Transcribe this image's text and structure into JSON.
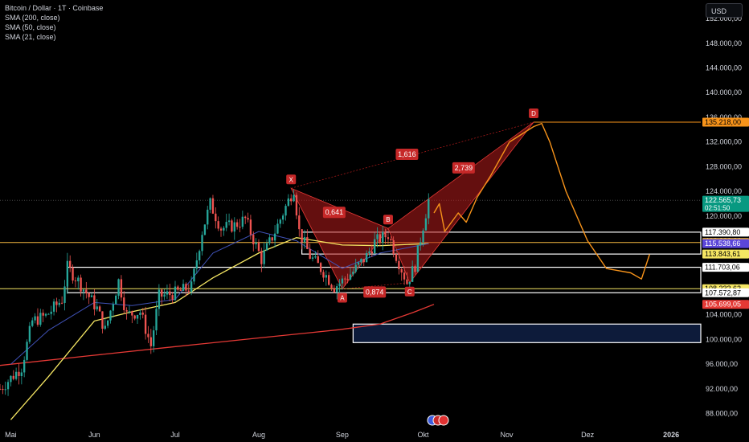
{
  "legend": {
    "title": "Bitcoin / Dollar · 1T · Coinbase",
    "items": [
      "SMA (200, close)",
      "SMA (50, close)",
      "SMA (21, close)"
    ]
  },
  "currency_button": "USD",
  "colors": {
    "up": "#26a69a",
    "down": "#ef5350",
    "sma200": "#e53935",
    "sma50": "#f5e663",
    "sma21": "#3f51b5",
    "pattern": "#b71c1c",
    "projection": "#f7931a",
    "box": "#0d1b3a",
    "hline": "#f5b841"
  },
  "chart_data": {
    "type": "candlestick",
    "title": "Bitcoin / Dollar · 1T · Coinbase",
    "y_axis": {
      "ylim": [
        86000,
        155000
      ],
      "ticks": [
        88000,
        92000,
        96000,
        100000,
        104000,
        108000,
        112000,
        116000,
        120000,
        124000,
        128000,
        132000,
        136000,
        140000,
        144000,
        148000,
        152000
      ],
      "tick_labels": [
        "88.000,00",
        "92.000,00",
        "96.000,00",
        "100.000,00",
        "104.000,00",
        "108.000,00",
        "112.000,00",
        "116.000,00",
        "120.000,00",
        "124.000,00",
        "128.000,00",
        "132.000,00",
        "136.000,00",
        "140.000,00",
        "144.000,00",
        "148.000,00",
        "152.000,00"
      ],
      "position": "right"
    },
    "x_axis": {
      "range": [
        "2025-04-27",
        "2026-01-12"
      ],
      "ticks": [
        {
          "date": "2025-05-01",
          "label": "Mai",
          "bold": false
        },
        {
          "date": "2025-06-01",
          "label": "Jun",
          "bold": false
        },
        {
          "date": "2025-07-01",
          "label": "Jul",
          "bold": false
        },
        {
          "date": "2025-08-01",
          "label": "Aug",
          "bold": false
        },
        {
          "date": "2025-09-01",
          "label": "Sep",
          "bold": false
        },
        {
          "date": "2025-10-01",
          "label": "Okt",
          "bold": false
        },
        {
          "date": "2025-11-01",
          "label": "Nov",
          "bold": false
        },
        {
          "date": "2025-12-01",
          "label": "Dez",
          "bold": false
        },
        {
          "date": "2026-01-01",
          "label": "2026",
          "bold": true
        }
      ]
    },
    "price_points": [
      [
        "2025-04-27",
        92000
      ],
      [
        "2025-05-05",
        95500
      ],
      [
        "2025-05-09",
        103000
      ],
      [
        "2025-05-14",
        103800
      ],
      [
        "2025-05-20",
        106500
      ],
      [
        "2025-05-22",
        111700
      ],
      [
        "2025-05-26",
        109500
      ],
      [
        "2025-06-02",
        105000
      ],
      [
        "2025-06-05",
        101500
      ],
      [
        "2025-06-10",
        109500
      ],
      [
        "2025-06-13",
        104000
      ],
      [
        "2025-06-18",
        104500
      ],
      [
        "2025-06-22",
        99000
      ],
      [
        "2025-06-25",
        107000
      ],
      [
        "2025-07-01",
        107500
      ],
      [
        "2025-07-07",
        108500
      ],
      [
        "2025-07-11",
        117500
      ],
      [
        "2025-07-14",
        122000
      ],
      [
        "2025-07-18",
        118000
      ],
      [
        "2025-07-23",
        118500
      ],
      [
        "2025-07-27",
        119500
      ],
      [
        "2025-08-02",
        113000
      ],
      [
        "2025-08-07",
        117500
      ],
      [
        "2025-08-11",
        121500
      ],
      [
        "2025-08-14",
        124500
      ],
      [
        "2025-08-16",
        117500
      ],
      [
        "2025-08-20",
        113500
      ],
      [
        "2025-08-25",
        111000
      ],
      [
        "2025-08-29",
        108500
      ],
      [
        "2025-09-01",
        109500
      ],
      [
        "2025-09-05",
        111000
      ],
      [
        "2025-09-10",
        113500
      ],
      [
        "2025-09-13",
        115800
      ],
      [
        "2025-09-18",
        117000
      ],
      [
        "2025-09-22",
        112500
      ],
      [
        "2025-09-25",
        109200
      ],
      [
        "2025-09-28",
        112000
      ],
      [
        "2025-10-01",
        118500
      ],
      [
        "2025-10-03",
        122565.73
      ]
    ],
    "sma200": [
      [
        "2025-04-27",
        95800
      ],
      [
        "2025-05-31",
        97400
      ],
      [
        "2025-06-30",
        98800
      ],
      [
        "2025-07-31",
        100200
      ],
      [
        "2025-08-31",
        101600
      ],
      [
        "2025-09-15",
        102500
      ],
      [
        "2025-09-28",
        104500
      ],
      [
        "2025-10-05",
        105699.05
      ]
    ],
    "sma50": [
      [
        "2025-05-01",
        87000
      ],
      [
        "2025-05-15",
        94000
      ],
      [
        "2025-06-01",
        103000
      ],
      [
        "2025-06-15",
        104500
      ],
      [
        "2025-07-01",
        106000
      ],
      [
        "2025-07-15",
        110000
      ],
      [
        "2025-08-01",
        114000
      ],
      [
        "2025-08-15",
        116500
      ],
      [
        "2025-09-01",
        115300
      ],
      [
        "2025-09-15",
        115200
      ],
      [
        "2025-10-03",
        115538.66
      ]
    ],
    "sma21": [
      [
        "2025-05-01",
        96000
      ],
      [
        "2025-05-15",
        101500
      ],
      [
        "2025-06-01",
        106000
      ],
      [
        "2025-06-15",
        105500
      ],
      [
        "2025-07-01",
        106500
      ],
      [
        "2025-07-15",
        114000
      ],
      [
        "2025-08-01",
        117500
      ],
      [
        "2025-08-15",
        116000
      ],
      [
        "2025-09-01",
        111500
      ],
      [
        "2025-09-15",
        114000
      ],
      [
        "2025-10-03",
        115538.66
      ]
    ],
    "harmonic_pattern": {
      "points": [
        {
          "label": "X",
          "date": "2025-08-13",
          "price": 124500
        },
        {
          "label": "A",
          "date": "2025-09-01",
          "price": 108200
        },
        {
          "label": "B",
          "date": "2025-09-18",
          "price": 118000
        },
        {
          "label": "C",
          "date": "2025-09-26",
          "price": 109200
        },
        {
          "label": "D",
          "date": "2025-11-11",
          "price": 135218
        }
      ],
      "ratios": [
        {
          "text": "0,641",
          "date": "2025-08-29",
          "price": 120600
        },
        {
          "text": "0,874",
          "date": "2025-09-13",
          "price": 107700
        },
        {
          "text": "1,616",
          "date": "2025-09-25",
          "price": 130000
        },
        {
          "text": "2,739",
          "date": "2025-10-16",
          "price": 127800
        }
      ]
    },
    "projection": [
      [
        "2025-10-05",
        120500
      ],
      [
        "2025-10-07",
        122000
      ],
      [
        "2025-10-09",
        117500
      ],
      [
        "2025-10-14",
        120500
      ],
      [
        "2025-10-17",
        119000
      ],
      [
        "2025-10-21",
        123000
      ],
      [
        "2025-10-26",
        126500
      ],
      [
        "2025-11-02",
        132000
      ],
      [
        "2025-11-11",
        134500
      ],
      [
        "2025-11-14",
        135000
      ],
      [
        "2025-11-17",
        132000
      ],
      [
        "2025-11-23",
        124000
      ],
      [
        "2025-12-01",
        116000
      ],
      [
        "2025-12-08",
        111500
      ],
      [
        "2025-12-17",
        110800
      ],
      [
        "2025-12-21",
        109800
      ],
      [
        "2025-12-24",
        113800
      ]
    ],
    "hlines": [
      {
        "price": 135218,
        "from": "2025-11-11",
        "color": "#f7931a"
      },
      {
        "price": 115713.81,
        "from": "2025-04-27",
        "color": "#f5b841"
      },
      {
        "price": 108232.62,
        "from": "2025-04-27",
        "color": "#f5e663"
      }
    ],
    "zones": [
      {
        "top": 117390.8,
        "bottom": 113843.61,
        "from": "2025-08-17",
        "color": "#ffffff"
      },
      {
        "top": 111703.06,
        "bottom": 107572.87,
        "from": "2025-05-22",
        "color": "#ffffff"
      }
    ],
    "target_box": {
      "top": 102500,
      "bottom": 99500,
      "from": "2025-09-05",
      "fill": "#0d1b3a",
      "stroke": "#ffffff"
    },
    "current_price_line": 122565.73,
    "price_labels": [
      {
        "text": "135.218,00",
        "price": 135218,
        "bg": "#f7931a",
        "fg": "#000000"
      },
      {
        "text": "122.565,73",
        "sub": "02:51:50",
        "price": 122565.73,
        "bg": "#089981",
        "fg": "#ffffff"
      },
      {
        "text": "117.390,80",
        "price": 117390.8,
        "bg": "#ffffff",
        "fg": "#000000"
      },
      {
        "text": "115.713,81",
        "price": 115713.81,
        "bg": "#f5b841",
        "fg": "#000000"
      },
      {
        "text": "115.538,66",
        "price": 115538.66,
        "bg": "#5b46d9",
        "fg": "#ffffff"
      },
      {
        "text": "113.843,61",
        "price": 113843.61,
        "bg": "#f5e663",
        "fg": "#000000"
      },
      {
        "text": "111.703,06",
        "price": 111703.06,
        "bg": "#ffffff",
        "fg": "#000000"
      },
      {
        "text": "108.232,62",
        "price": 108232.62,
        "bg": "#f5e663",
        "fg": "#000000"
      },
      {
        "text": "107.572,87",
        "price": 107572.87,
        "bg": "#ffffff",
        "fg": "#000000"
      },
      {
        "text": "105.699,05",
        "price": 105699.05,
        "bg": "#e53935",
        "fg": "#ffffff"
      }
    ]
  }
}
